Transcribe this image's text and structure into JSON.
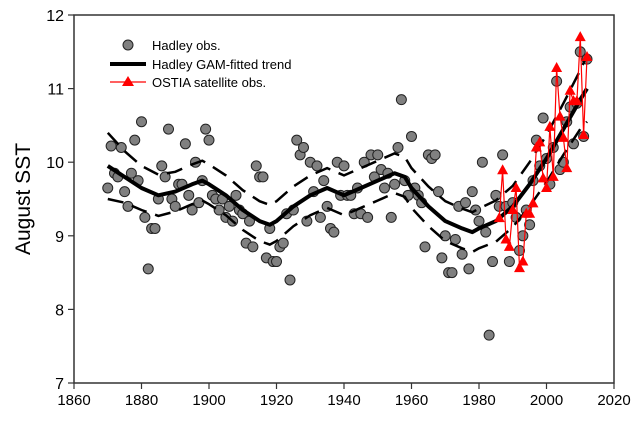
{
  "chart_data": {
    "type": "scatter",
    "title": "",
    "xlabel": "",
    "ylabel": "August SST",
    "xlim": [
      1860,
      2020
    ],
    "ylim": [
      7,
      12
    ],
    "xticks": [
      1860,
      1880,
      1900,
      1920,
      1940,
      1960,
      1980,
      2000,
      2020
    ],
    "yticks": [
      7,
      8,
      9,
      10,
      11,
      12
    ],
    "grid": false,
    "legend_position": "top-left",
    "legend": [
      "Hadley obs.",
      "Hadley GAM-fitted trend",
      "OSTIA satellite obs."
    ],
    "colors": {
      "hadley_fill": "#808080",
      "trend": "#000000",
      "ostia": "#ff0000"
    },
    "hadley": {
      "name": "Hadley obs.",
      "start_year": 1870,
      "values": [
        9.65,
        10.22,
        9.85,
        9.8,
        10.2,
        9.6,
        9.4,
        9.85,
        10.3,
        9.75,
        10.55,
        9.25,
        8.55,
        9.1,
        9.1,
        9.5,
        9.95,
        9.8,
        10.45,
        9.5,
        9.4,
        9.7,
        9.7,
        10.25,
        9.55,
        9.35,
        10.0,
        9.45,
        9.75,
        10.45,
        10.3,
        9.55,
        9.5,
        9.35,
        9.5,
        9.25,
        9.4,
        9.2,
        9.55,
        9.35,
        9.3,
        8.9,
        9.2,
        8.85,
        9.95,
        9.8,
        9.8,
        8.7,
        9.1,
        8.65,
        8.65,
        8.85,
        8.9,
        9.3,
        8.4,
        9.35,
        10.3,
        10.1,
        10.2,
        9.2,
        10.0,
        9.6,
        9.95,
        9.25,
        9.75,
        9.4,
        9.1,
        9.05,
        10.0,
        9.55,
        9.95,
        9.55,
        9.55,
        9.3,
        9.65,
        9.3,
        10.0,
        9.25,
        10.1,
        9.8,
        10.1,
        9.9,
        9.65,
        9.85,
        9.25,
        9.7,
        10.2,
        10.85,
        9.75,
        9.55,
        10.35,
        9.65,
        9.55,
        9.45,
        8.85,
        10.1,
        10.05,
        10.1,
        9.6,
        8.7,
        9.0,
        8.5,
        8.5,
        8.95,
        9.4,
        8.75,
        9.45,
        8.55,
        9.6,
        9.35,
        9.2,
        10.0,
        9.05,
        7.65,
        8.65,
        9.55,
        9.4,
        10.1,
        9.4,
        8.65,
        9.45,
        9.25,
        8.8,
        9.0,
        9.35,
        9.15,
        9.75,
        10.3,
        9.95,
        10.6,
        10.05,
        9.7,
        10.2,
        11.1,
        9.9,
        10.0,
        10.55,
        10.75,
        10.25,
        10.8,
        11.5,
        10.35,
        11.4
      ]
    },
    "trend": {
      "name": "Hadley GAM-fitted trend",
      "x": [
        1870,
        1875,
        1880,
        1885,
        1890,
        1895,
        1898,
        1900,
        1905,
        1910,
        1915,
        1918,
        1920,
        1925,
        1930,
        1935,
        1940,
        1945,
        1950,
        1955,
        1958,
        1960,
        1965,
        1970,
        1975,
        1978,
        1980,
        1985,
        1990,
        1995,
        2000,
        2005,
        2010,
        2012
      ],
      "y": [
        9.95,
        9.8,
        9.65,
        9.55,
        9.6,
        9.7,
        9.75,
        9.7,
        9.55,
        9.35,
        9.2,
        9.15,
        9.2,
        9.4,
        9.55,
        9.65,
        9.55,
        9.65,
        9.75,
        9.85,
        9.8,
        9.65,
        9.4,
        9.2,
        9.1,
        9.05,
        9.1,
        9.2,
        9.4,
        9.7,
        10.05,
        10.45,
        10.85,
        11.0
      ],
      "ci_halfwidth": [
        0.45,
        0.35,
        0.3,
        0.28,
        0.27,
        0.27,
        0.27,
        0.27,
        0.27,
        0.27,
        0.27,
        0.27,
        0.27,
        0.27,
        0.27,
        0.27,
        0.27,
        0.27,
        0.27,
        0.27,
        0.27,
        0.27,
        0.27,
        0.27,
        0.27,
        0.27,
        0.27,
        0.28,
        0.28,
        0.3,
        0.32,
        0.35,
        0.4,
        0.45
      ]
    },
    "ostia": {
      "name": "OSTIA satellite obs.",
      "start_year": 1986,
      "values": [
        9.24,
        9.89,
        8.95,
        8.85,
        9.35,
        9.65,
        8.56,
        8.65,
        9.3,
        9.3,
        9.44,
        10.2,
        10.27,
        9.78,
        9.65,
        10.48,
        9.8,
        11.28,
        10.62,
        10.33,
        9.92,
        10.97,
        10.83,
        10.83,
        11.7,
        10.37,
        11.43
      ]
    }
  }
}
